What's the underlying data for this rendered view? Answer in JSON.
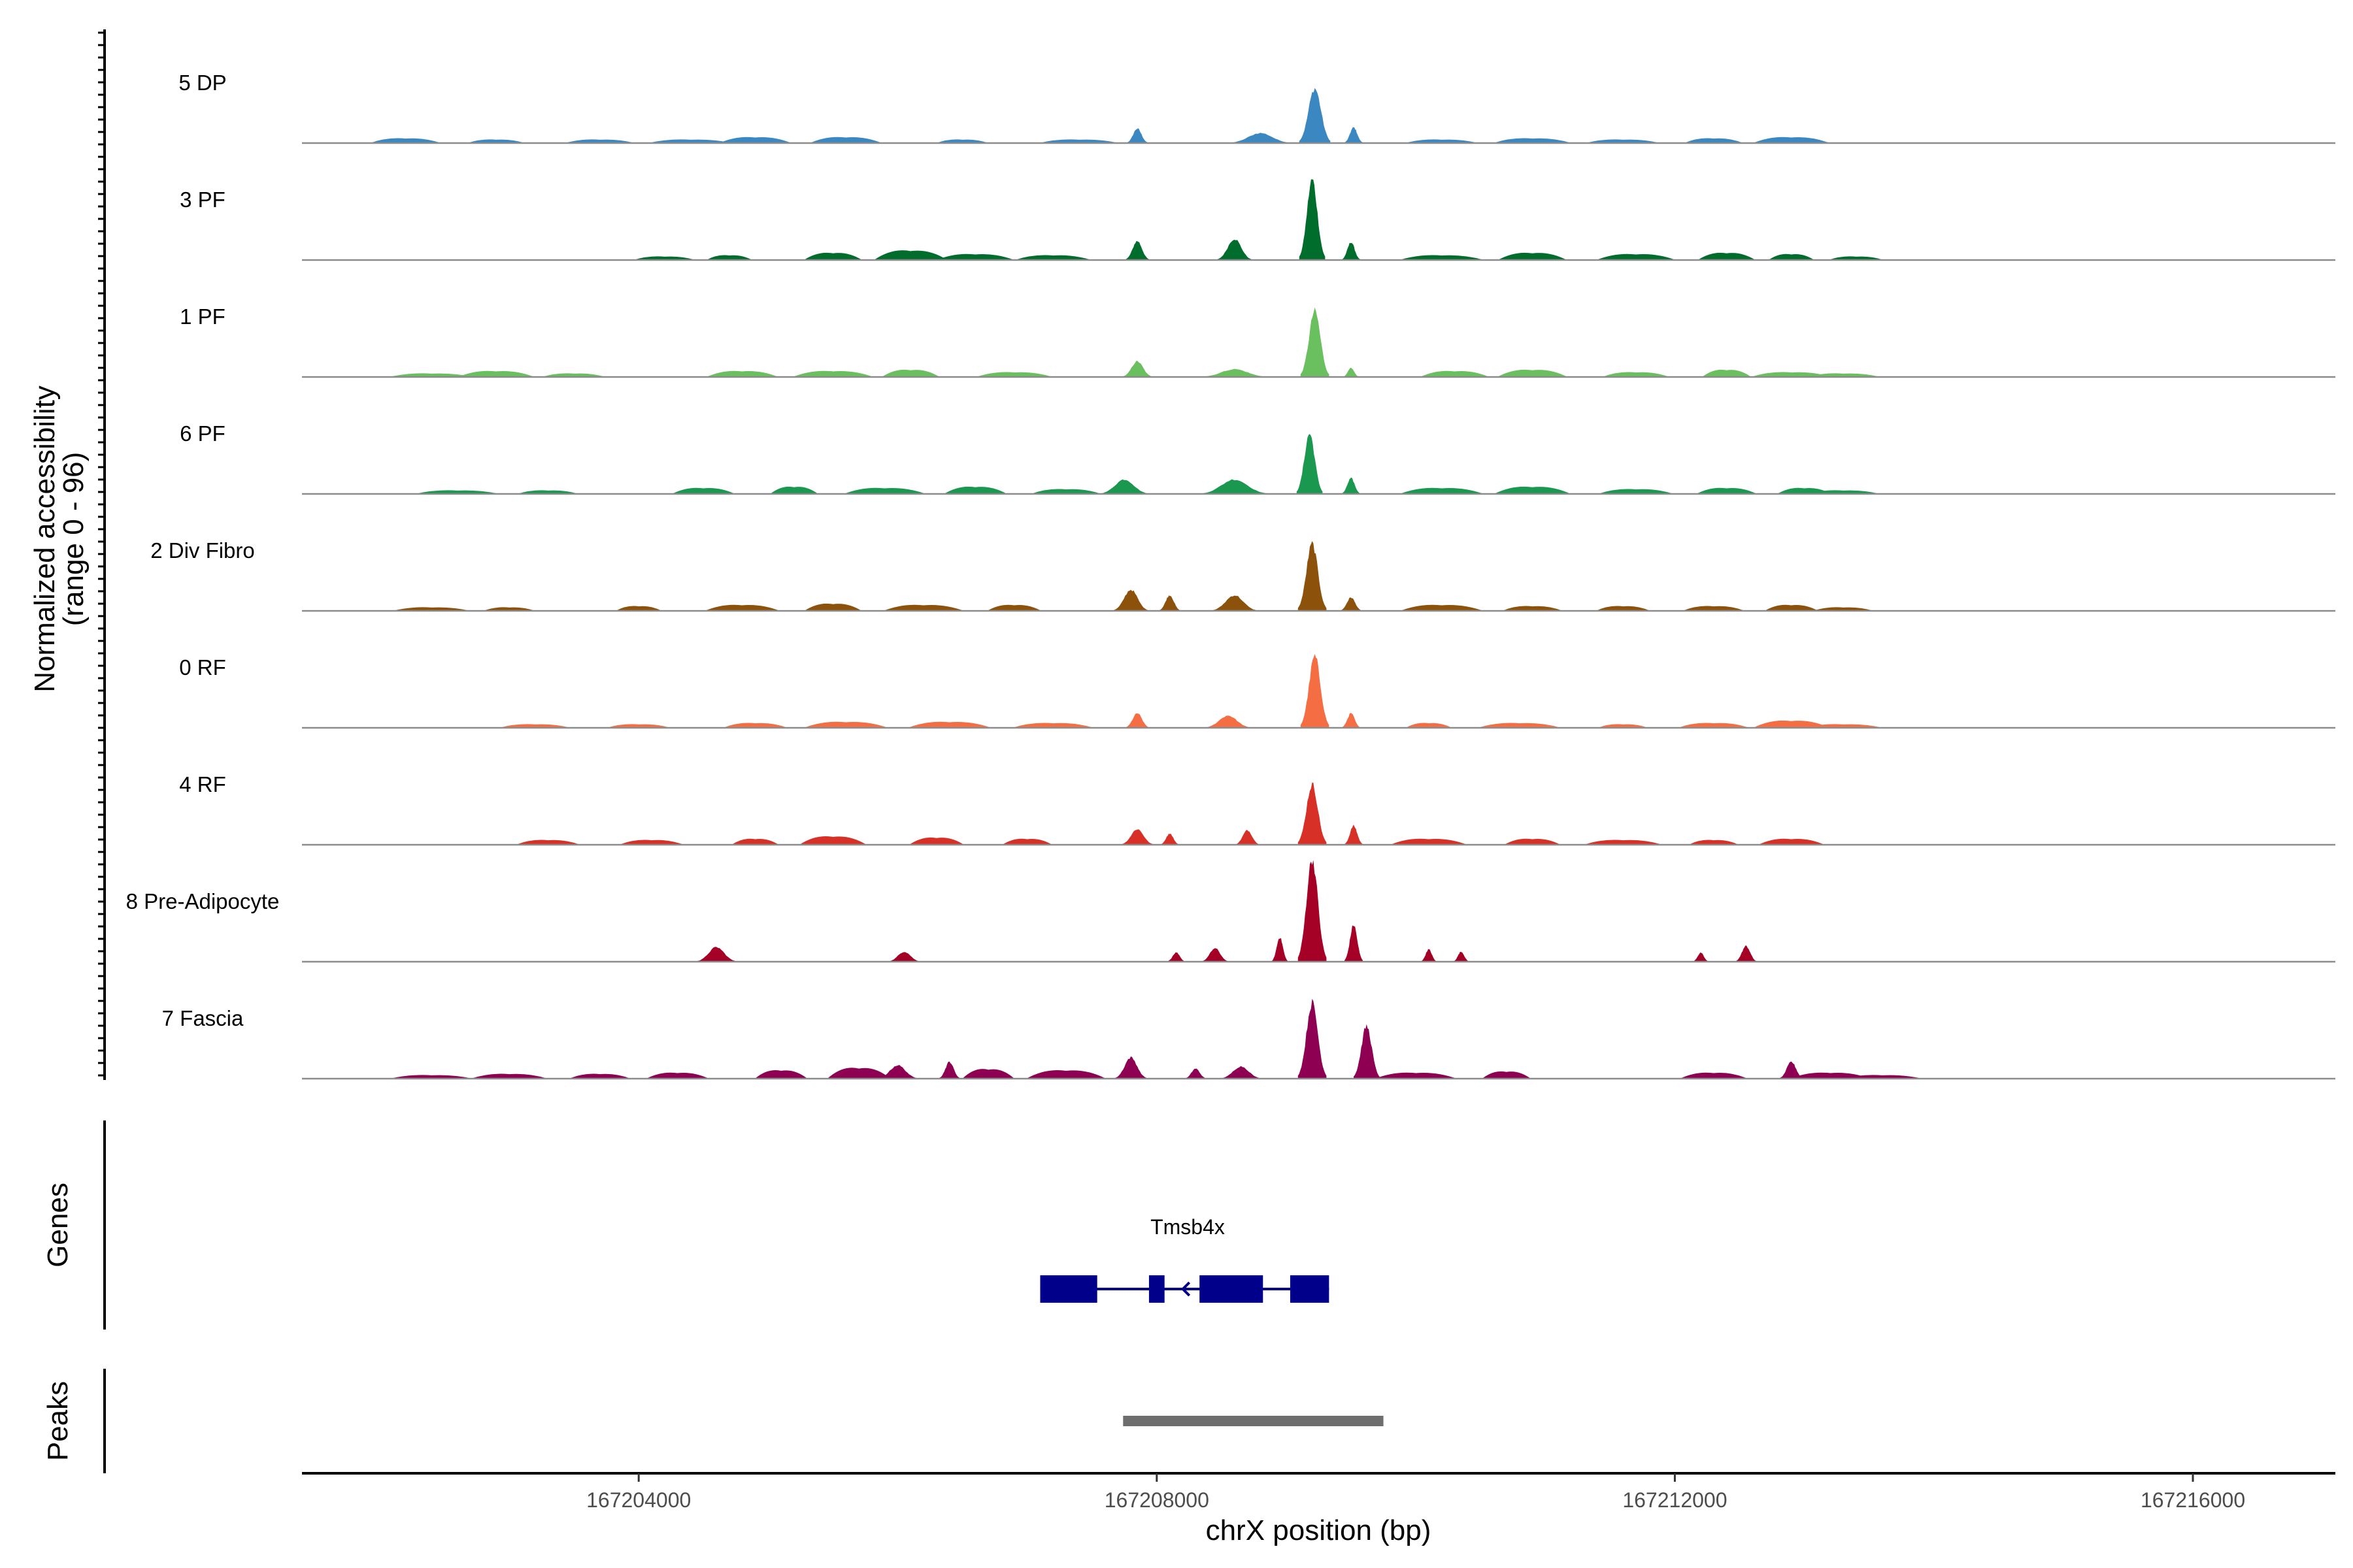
{
  "chart_data": {
    "type": "area",
    "y_axis_title_line1": "Normalized accessibility",
    "y_axis_title_line2": "(range 0 - 96)",
    "y_range": [
      0,
      96
    ],
    "x_axis_title": "chrX position (bp)",
    "x_range": [
      167201400,
      167217100
    ],
    "x_ticks": [
      167204000,
      167208000,
      167212000,
      167216000
    ],
    "x_tick_labels": [
      "167204000",
      "167208000",
      "167212000",
      "167216000"
    ],
    "tracks": [
      {
        "name": "5 DP",
        "color": "#3A87C2",
        "background": [
          [
            167202200,
            4
          ],
          [
            167202900,
            3
          ],
          [
            167203700,
            3
          ],
          [
            167204400,
            3
          ],
          [
            167204900,
            5
          ],
          [
            167205600,
            5
          ],
          [
            167206500,
            3
          ],
          [
            167207400,
            3
          ],
          [
            167210200,
            3
          ],
          [
            167210900,
            4
          ],
          [
            167211600,
            3
          ],
          [
            167212300,
            4
          ],
          [
            167212900,
            5
          ]
        ],
        "peaks": [
          [
            167207850,
            13,
            80
          ],
          [
            167208800,
            9,
            230
          ],
          [
            167209220,
            49,
            120
          ],
          [
            167209520,
            14,
            70
          ]
        ]
      },
      {
        "name": "3 PF",
        "color": "#006D2C",
        "background": [
          [
            167204200,
            3
          ],
          [
            167204700,
            4
          ],
          [
            167205500,
            6
          ],
          [
            167206100,
            8
          ],
          [
            167206600,
            5
          ],
          [
            167207200,
            4
          ],
          [
            167210200,
            4
          ],
          [
            167210900,
            6
          ],
          [
            167211700,
            5
          ],
          [
            167212400,
            6
          ],
          [
            167212900,
            5
          ],
          [
            167213400,
            3
          ]
        ],
        "peaks": [
          [
            167207850,
            17,
            90
          ],
          [
            167208600,
            19,
            130
          ],
          [
            167209200,
            72,
            100
          ],
          [
            167209500,
            16,
            70
          ]
        ]
      },
      {
        "name": "1 PF",
        "color": "#6ABF5F",
        "background": [
          [
            167202400,
            3
          ],
          [
            167202900,
            5
          ],
          [
            167203500,
            3
          ],
          [
            167204800,
            5
          ],
          [
            167205500,
            5
          ],
          [
            167206100,
            6
          ],
          [
            167206900,
            4
          ],
          [
            167210300,
            5
          ],
          [
            167210900,
            6
          ],
          [
            167211700,
            4
          ],
          [
            167212400,
            6
          ],
          [
            167212900,
            4
          ],
          [
            167213300,
            3
          ]
        ],
        "peaks": [
          [
            167207850,
            14,
            110
          ],
          [
            167208600,
            7,
            250
          ],
          [
            167209220,
            59,
            110
          ],
          [
            167209500,
            8,
            60
          ]
        ]
      },
      {
        "name": "6 PF",
        "color": "#1A9850",
        "background": [
          [
            167202600,
            3
          ],
          [
            167203300,
            3
          ],
          [
            167204500,
            5
          ],
          [
            167205200,
            6
          ],
          [
            167205900,
            5
          ],
          [
            167206600,
            6
          ],
          [
            167207300,
            4
          ],
          [
            167210200,
            5
          ],
          [
            167210900,
            6
          ],
          [
            167211700,
            4
          ],
          [
            167212400,
            5
          ],
          [
            167213000,
            5
          ],
          [
            167213300,
            3
          ]
        ],
        "peaks": [
          [
            167207750,
            13,
            180
          ],
          [
            167208600,
            13,
            250
          ],
          [
            167209180,
            54,
            100
          ],
          [
            167209500,
            14,
            70
          ]
        ]
      },
      {
        "name": "2 Div Fibro",
        "color": "#8C510A",
        "background": [
          [
            167202400,
            3
          ],
          [
            167203000,
            3
          ],
          [
            167204000,
            4
          ],
          [
            167204800,
            5
          ],
          [
            167205500,
            6
          ],
          [
            167206200,
            5
          ],
          [
            167206900,
            5
          ],
          [
            167210200,
            5
          ],
          [
            167210900,
            4
          ],
          [
            167211600,
            4
          ],
          [
            167212300,
            4
          ],
          [
            167212900,
            5
          ],
          [
            167213300,
            3
          ]
        ],
        "peaks": [
          [
            167207800,
            19,
            130
          ],
          [
            167208100,
            14,
            80
          ],
          [
            167208600,
            14,
            170
          ],
          [
            167209200,
            60,
            110
          ],
          [
            167209500,
            12,
            80
          ]
        ]
      },
      {
        "name": "0 RF",
        "color": "#F46D43",
        "background": [
          [
            167203200,
            3
          ],
          [
            167204000,
            3
          ],
          [
            167204900,
            4
          ],
          [
            167205600,
            5
          ],
          [
            167206400,
            5
          ],
          [
            167207200,
            4
          ],
          [
            167210100,
            4
          ],
          [
            167210800,
            4
          ],
          [
            167211600,
            3
          ],
          [
            167212300,
            4
          ],
          [
            167212900,
            6
          ],
          [
            167213300,
            3
          ]
        ],
        "peaks": [
          [
            167207850,
            13,
            90
          ],
          [
            167208550,
            11,
            170
          ],
          [
            167209220,
            64,
            110
          ],
          [
            167209500,
            13,
            70
          ]
        ]
      },
      {
        "name": "4 RF",
        "color": "#D73027",
        "background": [
          [
            167203300,
            4
          ],
          [
            167204100,
            4
          ],
          [
            167204900,
            5
          ],
          [
            167205500,
            7
          ],
          [
            167206300,
            6
          ],
          [
            167207000,
            5
          ],
          [
            167210100,
            5
          ],
          [
            167210900,
            5
          ],
          [
            167211600,
            4
          ],
          [
            167212300,
            4
          ],
          [
            167212900,
            5
          ]
        ],
        "peaks": [
          [
            167207850,
            14,
            120
          ],
          [
            167208100,
            10,
            70
          ],
          [
            167208700,
            13,
            90
          ],
          [
            167209200,
            54,
            110
          ],
          [
            167209520,
            17,
            70
          ]
        ]
      },
      {
        "name": "8 Pre-Adipocyte",
        "color": "#A50026",
        "background": [],
        "peaks": [
          [
            167204600,
            13,
            150
          ],
          [
            167206050,
            9,
            120
          ],
          [
            167208150,
            8,
            70
          ],
          [
            167208450,
            12,
            100
          ],
          [
            167208950,
            22,
            60
          ],
          [
            167209200,
            92,
            110
          ],
          [
            167209520,
            33,
            70
          ],
          [
            167210100,
            11,
            60
          ],
          [
            167210350,
            9,
            60
          ],
          [
            167212200,
            8,
            60
          ],
          [
            167212550,
            14,
            80
          ]
        ]
      },
      {
        "name": "7 Fascia",
        "color": "#8E0152",
        "background": [
          [
            167202400,
            3
          ],
          [
            167203000,
            4
          ],
          [
            167203700,
            4
          ],
          [
            167204300,
            5
          ],
          [
            167205100,
            7
          ],
          [
            167205700,
            9
          ],
          [
            167206700,
            8
          ],
          [
            167207300,
            7
          ],
          [
            167210000,
            5
          ],
          [
            167210700,
            6
          ],
          [
            167212300,
            5
          ],
          [
            167213200,
            5
          ],
          [
            167213600,
            3
          ]
        ],
        "peaks": [
          [
            167206000,
            12,
            150
          ],
          [
            167206400,
            15,
            80
          ],
          [
            167207800,
            19,
            120
          ],
          [
            167208300,
            9,
            80
          ],
          [
            167208650,
            11,
            150
          ],
          [
            167209200,
            68,
            110
          ],
          [
            167209620,
            47,
            100
          ],
          [
            167212900,
            15,
            90
          ]
        ]
      }
    ],
    "genes_track_label": "Genes",
    "gene": {
      "name": "Tmsb4x",
      "color": "#00008B",
      "strand": "-",
      "start": 167207100,
      "end": 167209330,
      "exons": [
        [
          167207100,
          167207540
        ],
        [
          167207940,
          167208060
        ],
        [
          167208330,
          167208820
        ],
        [
          167209030,
          167209330
        ]
      ]
    },
    "peaks_track_label": "Peaks",
    "peak_regions": [
      {
        "start": 167207740,
        "end": 167209750,
        "color": "#6E6E6E"
      }
    ]
  }
}
